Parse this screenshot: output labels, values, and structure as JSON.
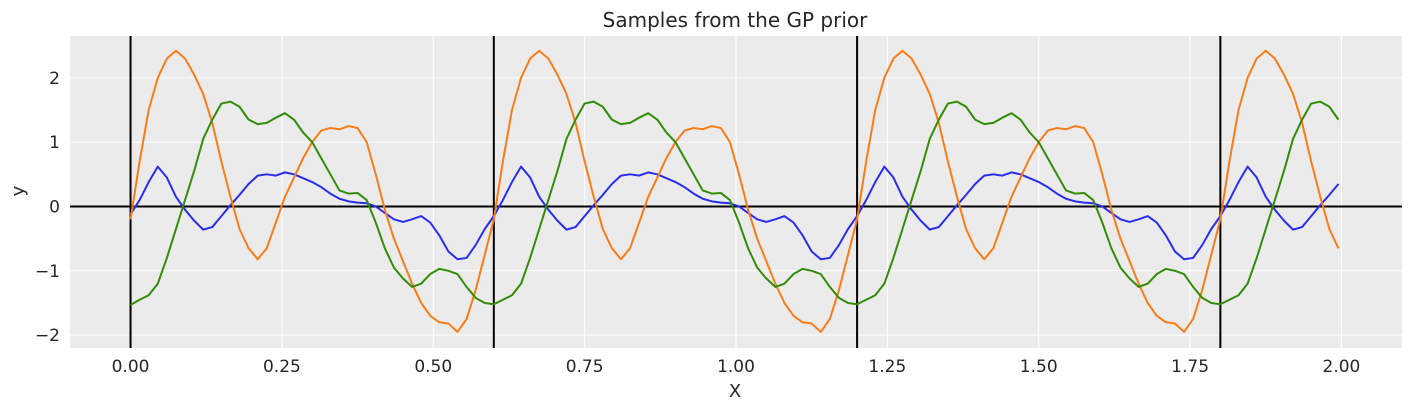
{
  "chart_data": {
    "type": "line",
    "title": "Samples from the GP prior",
    "xlabel": "X",
    "ylabel": "y",
    "xlim": [
      -0.1,
      2.1
    ],
    "ylim": [
      -2.2,
      2.65
    ],
    "xticks": [
      0.0,
      0.25,
      0.5,
      0.75,
      1.0,
      1.25,
      1.5,
      1.75,
      2.0
    ],
    "xtick_labels": [
      "0.00",
      "0.25",
      "0.50",
      "0.75",
      "1.00",
      "1.25",
      "1.50",
      "1.75",
      "2.00"
    ],
    "yticks": [
      -2,
      -1,
      0,
      1,
      2
    ],
    "ytick_labels": [
      "−2",
      "−1",
      "0",
      "1",
      "2"
    ],
    "grid": true,
    "background": "#ebebeb",
    "vertical_lines": [
      0.0,
      0.6,
      1.2,
      1.8
    ],
    "horizontal_lines": [
      0.0
    ],
    "reference_line_color": "#000000",
    "series": [
      {
        "color": "#2a2eec",
        "x": [
          0.0,
          0.015,
          0.03,
          0.045,
          0.06,
          0.075,
          0.09,
          0.105,
          0.12,
          0.135,
          0.15,
          0.165,
          0.18,
          0.195,
          0.21,
          0.225,
          0.24,
          0.255,
          0.27,
          0.285,
          0.3,
          0.315,
          0.33,
          0.345,
          0.36,
          0.375,
          0.39,
          0.405,
          0.42,
          0.435,
          0.45,
          0.465,
          0.48,
          0.495,
          0.51,
          0.525,
          0.54,
          0.555,
          0.57,
          0.585,
          0.6
        ],
        "y": [
          -0.12,
          0.1,
          0.38,
          0.62,
          0.45,
          0.15,
          -0.05,
          -0.22,
          -0.36,
          -0.32,
          -0.15,
          0.02,
          0.18,
          0.35,
          0.48,
          0.5,
          0.48,
          0.53,
          0.5,
          0.44,
          0.38,
          0.3,
          0.2,
          0.12,
          0.08,
          0.06,
          0.05,
          0.0,
          -0.1,
          -0.2,
          -0.24,
          -0.2,
          -0.15,
          -0.25,
          -0.45,
          -0.7,
          -0.82,
          -0.8,
          -0.6,
          -0.35,
          -0.15
        ]
      },
      {
        "color": "#fa7c17",
        "x": [
          0.0,
          0.015,
          0.03,
          0.045,
          0.06,
          0.075,
          0.09,
          0.105,
          0.12,
          0.135,
          0.15,
          0.165,
          0.18,
          0.195,
          0.21,
          0.225,
          0.24,
          0.255,
          0.27,
          0.285,
          0.3,
          0.315,
          0.33,
          0.345,
          0.36,
          0.375,
          0.39,
          0.405,
          0.42,
          0.435,
          0.45,
          0.465,
          0.48,
          0.495,
          0.51,
          0.525,
          0.54,
          0.555,
          0.57,
          0.585,
          0.6
        ],
        "y": [
          -0.2,
          0.7,
          1.5,
          2.0,
          2.3,
          2.42,
          2.3,
          2.05,
          1.75,
          1.3,
          0.7,
          0.15,
          -0.35,
          -0.65,
          -0.82,
          -0.65,
          -0.25,
          0.15,
          0.45,
          0.75,
          1.0,
          1.18,
          1.22,
          1.2,
          1.25,
          1.22,
          1.0,
          0.5,
          -0.05,
          -0.5,
          -0.85,
          -1.2,
          -1.5,
          -1.7,
          -1.8,
          -1.82,
          -1.95,
          -1.75,
          -1.3,
          -0.75,
          -0.2
        ]
      },
      {
        "color": "#328c06",
        "x": [
          0.0,
          0.015,
          0.03,
          0.045,
          0.06,
          0.075,
          0.09,
          0.105,
          0.12,
          0.135,
          0.15,
          0.165,
          0.18,
          0.195,
          0.21,
          0.225,
          0.24,
          0.255,
          0.27,
          0.285,
          0.3,
          0.315,
          0.33,
          0.345,
          0.36,
          0.375,
          0.39,
          0.405,
          0.42,
          0.435,
          0.45,
          0.465,
          0.48,
          0.495,
          0.51,
          0.525,
          0.54,
          0.555,
          0.57,
          0.585,
          0.6
        ],
        "y": [
          -1.53,
          -1.45,
          -1.38,
          -1.2,
          -0.8,
          -0.35,
          0.1,
          0.55,
          1.05,
          1.35,
          1.6,
          1.63,
          1.55,
          1.35,
          1.28,
          1.3,
          1.38,
          1.45,
          1.35,
          1.15,
          1.0,
          0.75,
          0.5,
          0.25,
          0.2,
          0.21,
          0.1,
          -0.25,
          -0.65,
          -0.95,
          -1.12,
          -1.25,
          -1.2,
          -1.05,
          -0.97,
          -1.0,
          -1.05,
          -1.25,
          -1.42,
          -1.5,
          -1.52
        ]
      }
    ],
    "period": 0.6,
    "x_end": 2.0
  }
}
